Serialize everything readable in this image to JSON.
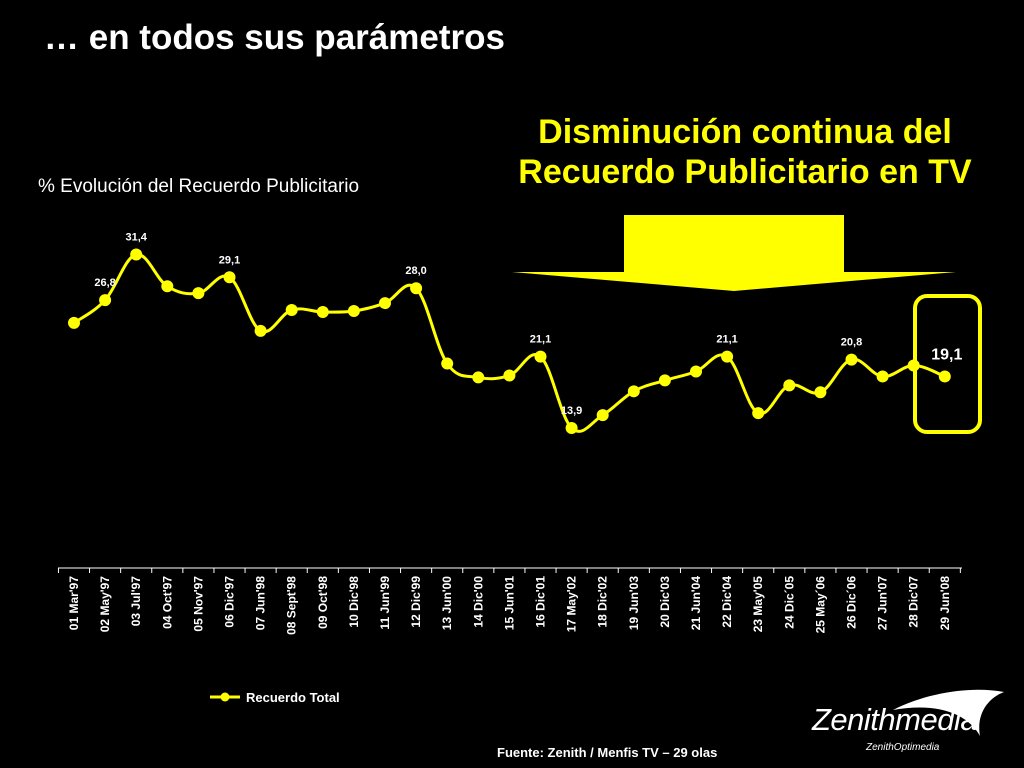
{
  "page_title": "… en todos sus parámetros",
  "headline": [
    "Disminución continua del",
    "Recuerdo Publicitario en TV"
  ],
  "source": "Fuente: Zenith / Menfis TV – 29 olas",
  "logo": {
    "name": "Zenithmedia",
    "sub": "ZenithOptimedia"
  },
  "colors": {
    "background": "#000000",
    "accent": "#ffff00",
    "text": "#ffffff"
  },
  "chart_data": {
    "type": "line",
    "title": "% Evolución del Recuerdo Publicitario",
    "categories": [
      "01 Mar'97",
      "02 May'97",
      "03 Jul'97",
      "04 Oct'97",
      "05 Nov'97",
      "06 Dic'97",
      "07 Jun'98",
      "08 Sept'98",
      "09 Oct'98",
      "10 Dic'98",
      "11 Jun'99",
      "12 Dic'99",
      "13 Jun'00",
      "14 Dic'00",
      "15 Jun'01",
      "16 Dic'01",
      "17 May'02",
      "18 Dic'02",
      "19 Jun'03",
      "20 Dic'03",
      "21 Jun'04",
      "22 Dic'04",
      "23 May'05",
      "24 Dic´05",
      "25 May´06",
      "26 Dic´06",
      "27 Jun'07",
      "28 Dic'07",
      "29 Jun'08"
    ],
    "series": [
      {
        "name": "Recuerdo Total",
        "values": [
          24.5,
          26.8,
          31.4,
          28.2,
          27.5,
          29.1,
          23.7,
          25.8,
          25.6,
          25.7,
          26.5,
          28.0,
          20.4,
          19.0,
          19.2,
          21.1,
          13.9,
          15.2,
          17.6,
          18.7,
          19.6,
          21.1,
          15.4,
          18.2,
          17.5,
          20.8,
          19.1,
          20.2,
          19.1
        ]
      }
    ],
    "data_labels": [
      {
        "index": 1,
        "text": "26,8"
      },
      {
        "index": 2,
        "text": "31,4"
      },
      {
        "index": 5,
        "text": "29,1"
      },
      {
        "index": 11,
        "text": "28,0"
      },
      {
        "index": 15,
        "text": "21,1"
      },
      {
        "index": 16,
        "text": "13,9"
      },
      {
        "index": 21,
        "text": "21,1"
      },
      {
        "index": 25,
        "text": "20,8"
      },
      {
        "index": 28,
        "text": "19,1"
      }
    ],
    "highlight_index": 28,
    "legend": "bottom-left",
    "y_axis_visible": false,
    "grid": false,
    "ylim": [
      0,
      35
    ]
  }
}
